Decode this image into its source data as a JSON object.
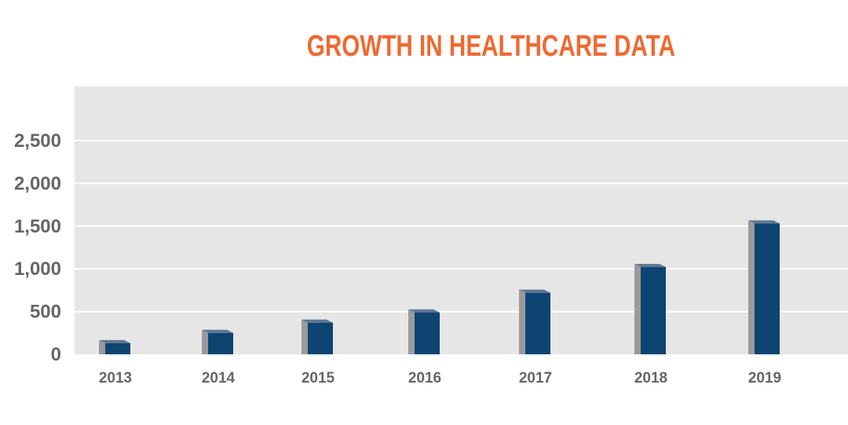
{
  "chart_data": {
    "type": "bar",
    "title": "GROWTH IN HEALTHCARE DATA",
    "xlabel": "",
    "ylabel": "",
    "categories": [
      "2013",
      "2014",
      "2015",
      "2016",
      "2017",
      "2018",
      "2019"
    ],
    "values": [
      130,
      250,
      370,
      490,
      720,
      1020,
      1530
    ],
    "ylim": [
      0,
      2800
    ],
    "yticks": [
      0,
      500,
      1000,
      1500,
      2000,
      2500
    ],
    "ytick_labels": [
      "0",
      "500",
      "1,000",
      "1,500",
      "2,000",
      "2,500"
    ],
    "grid": true,
    "legend": "none"
  },
  "colors": {
    "title": "#EE6A32",
    "bar_front": "#0E4472",
    "bar_side": "#9A9A9A",
    "bar_top": "#5E7892",
    "plot_background": "#E6E6E6",
    "gridline": "#FFFFFF",
    "axis_text": "#666666"
  }
}
